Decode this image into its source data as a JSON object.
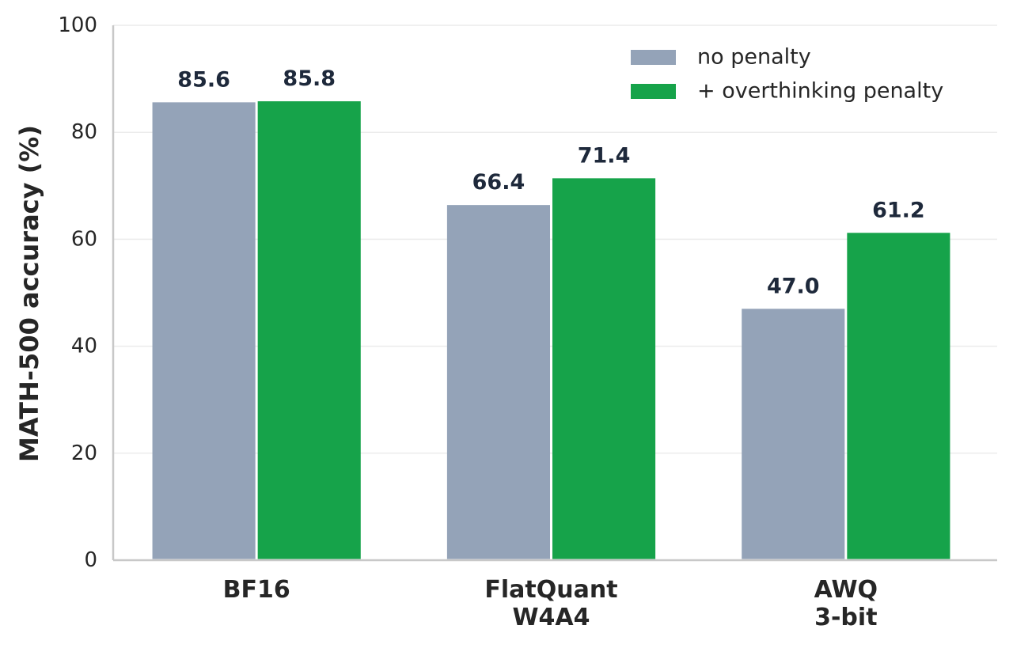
{
  "chart_data": {
    "type": "bar",
    "categories": [
      [
        "BF16"
      ],
      [
        "FlatQuant",
        "W4A4"
      ],
      [
        "AWQ",
        "3-bit"
      ]
    ],
    "series": [
      {
        "name": "no penalty",
        "values": [
          85.6,
          66.4,
          47.0
        ],
        "labels": [
          "85.6",
          "66.4",
          "47.0"
        ],
        "color": "#94a3b8"
      },
      {
        "name": "+ overthinking penalty",
        "values": [
          85.8,
          71.4,
          61.2
        ],
        "labels": [
          "85.8",
          "71.4",
          "61.2"
        ],
        "color": "#16a34a"
      }
    ],
    "ylabel": "MATH-500 accuracy (%)",
    "ylim": [
      0,
      100
    ],
    "yticks": [
      0,
      20,
      40,
      60,
      80,
      100
    ],
    "grid": true,
    "legend_position": "top-right"
  }
}
